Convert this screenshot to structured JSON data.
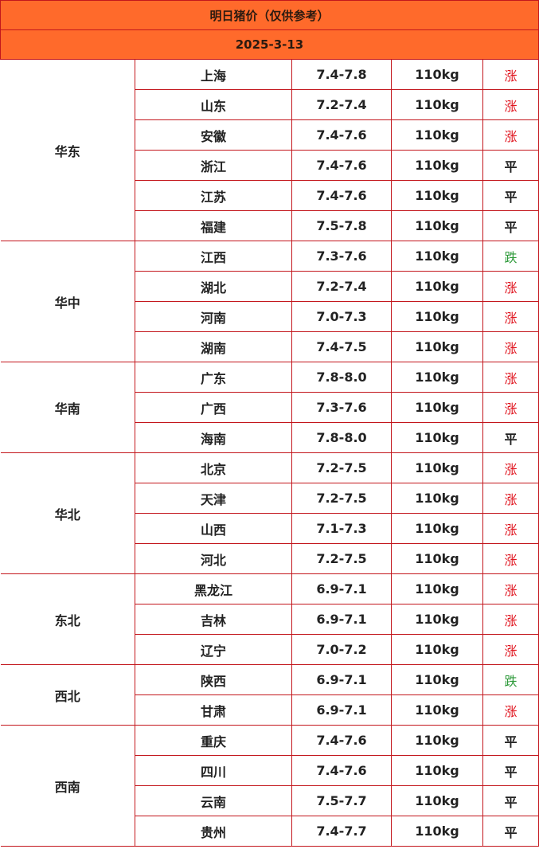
{
  "title": "明日猪价（仅供参考）",
  "date": "2025-3-13",
  "colors": {
    "header_bg": "#ff6a2b",
    "border": "#c3161c",
    "up": "#e0141e",
    "down": "#2e9a3a",
    "flat": "#222222"
  },
  "regions": [
    {
      "name": "华东",
      "rows": [
        {
          "province": "上海",
          "price": "7.4-7.8",
          "weight": "110kg",
          "trend": "涨"
        },
        {
          "province": "山东",
          "price": "7.2-7.4",
          "weight": "110kg",
          "trend": "涨"
        },
        {
          "province": "安徽",
          "price": "7.4-7.6",
          "weight": "110kg",
          "trend": "涨"
        },
        {
          "province": "浙江",
          "price": "7.4-7.6",
          "weight": "110kg",
          "trend": "平"
        },
        {
          "province": "江苏",
          "price": "7.4-7.6",
          "weight": "110kg",
          "trend": "平"
        },
        {
          "province": "福建",
          "price": "7.5-7.8",
          "weight": "110kg",
          "trend": "平"
        }
      ]
    },
    {
      "name": "华中",
      "rows": [
        {
          "province": "江西",
          "price": "7.3-7.6",
          "weight": "110kg",
          "trend": "跌"
        },
        {
          "province": "湖北",
          "price": "7.2-7.4",
          "weight": "110kg",
          "trend": "涨"
        },
        {
          "province": "河南",
          "price": "7.0-7.3",
          "weight": "110kg",
          "trend": "涨"
        },
        {
          "province": "湖南",
          "price": "7.4-7.5",
          "weight": "110kg",
          "trend": "涨"
        }
      ]
    },
    {
      "name": "华南",
      "rows": [
        {
          "province": "广东",
          "price": "7.8-8.0",
          "weight": "110kg",
          "trend": "涨"
        },
        {
          "province": "广西",
          "price": "7.3-7.6",
          "weight": "110kg",
          "trend": "涨"
        },
        {
          "province": "海南",
          "price": "7.8-8.0",
          "weight": "110kg",
          "trend": "平"
        }
      ]
    },
    {
      "name": "华北",
      "rows": [
        {
          "province": "北京",
          "price": "7.2-7.5",
          "weight": "110kg",
          "trend": "涨"
        },
        {
          "province": "天津",
          "price": "7.2-7.5",
          "weight": "110kg",
          "trend": "涨"
        },
        {
          "province": "山西",
          "price": "7.1-7.3",
          "weight": "110kg",
          "trend": "涨"
        },
        {
          "province": "河北",
          "price": "7.2-7.5",
          "weight": "110kg",
          "trend": "涨"
        }
      ]
    },
    {
      "name": "东北",
      "rows": [
        {
          "province": "黑龙江",
          "price": "6.9-7.1",
          "weight": "110kg",
          "trend": "涨"
        },
        {
          "province": "吉林",
          "price": "6.9-7.1",
          "weight": "110kg",
          "trend": "涨"
        },
        {
          "province": "辽宁",
          "price": "7.0-7.2",
          "weight": "110kg",
          "trend": "涨"
        }
      ]
    },
    {
      "name": "西北",
      "rows": [
        {
          "province": "陕西",
          "price": "6.9-7.1",
          "weight": "110kg",
          "trend": "跌"
        },
        {
          "province": "甘肃",
          "price": "6.9-7.1",
          "weight": "110kg",
          "trend": "涨"
        }
      ]
    },
    {
      "name": "西南",
      "rows": [
        {
          "province": "重庆",
          "price": "7.4-7.6",
          "weight": "110kg",
          "trend": "平"
        },
        {
          "province": "四川",
          "price": "7.4-7.6",
          "weight": "110kg",
          "trend": "平"
        },
        {
          "province": "云南",
          "price": "7.5-7.7",
          "weight": "110kg",
          "trend": "平"
        },
        {
          "province": "贵州",
          "price": "7.4-7.7",
          "weight": "110kg",
          "trend": "平"
        }
      ]
    }
  ]
}
